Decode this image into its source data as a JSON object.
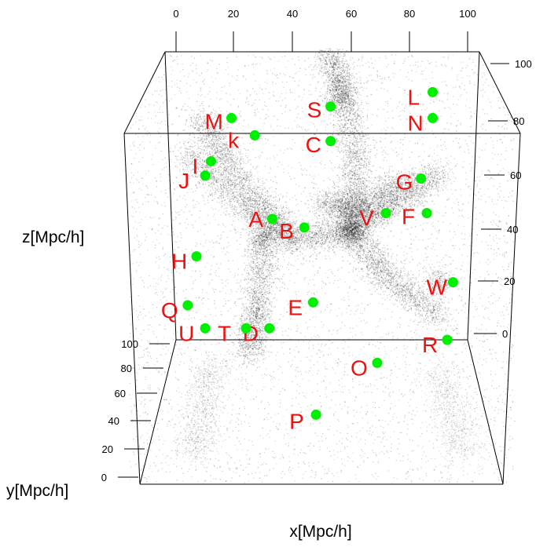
{
  "chart_data": {
    "type": "scatter",
    "projection": "3d-perspective",
    "grid": false,
    "axes": {
      "x": {
        "label": "x[Mpc/h]",
        "ticks": [
          0,
          20,
          40,
          60,
          80,
          100
        ],
        "range": [
          0,
          100
        ]
      },
      "y": {
        "label": "y[Mpc/h]",
        "ticks": [
          0,
          20,
          40,
          60,
          80,
          100
        ],
        "range": [
          0,
          100
        ]
      },
      "z": {
        "label": "z[Mpc/h]",
        "ticks": [
          0,
          20,
          40,
          60,
          80,
          100
        ],
        "range": [
          0,
          100
        ]
      }
    },
    "colors": {
      "markers": "#00ee00",
      "labels": "#ee1111",
      "particles": "#000000",
      "box": "#000000"
    },
    "background_particles": {
      "description_none": "",
      "filaments_xz": [
        [
          [
            3,
            65
          ],
          [
            25,
            45
          ],
          [
            40,
            35
          ],
          [
            60,
            38
          ]
        ],
        [
          [
            60,
            38
          ],
          [
            62,
            60
          ],
          [
            58,
            85
          ],
          [
            52,
            100
          ]
        ],
        [
          [
            60,
            38
          ],
          [
            75,
            48
          ],
          [
            90,
            58
          ]
        ],
        [
          [
            30,
            35
          ],
          [
            28,
            10
          ],
          [
            25,
            -5
          ]
        ],
        [
          [
            60,
            38
          ],
          [
            72,
            22
          ],
          [
            90,
            8
          ]
        ],
        [
          [
            40,
            35
          ],
          [
            20,
            58
          ],
          [
            8,
            78
          ]
        ],
        [
          [
            50,
            48
          ],
          [
            62,
            45
          ],
          [
            78,
            55
          ]
        ]
      ]
    },
    "points": [
      {
        "label": "A",
        "x": 33,
        "z": 42,
        "depth": 0.5
      },
      {
        "label": "B",
        "x": 44,
        "z": 39,
        "depth": 0.5
      },
      {
        "label": "C",
        "x": 53,
        "z": 69,
        "depth": 0.5
      },
      {
        "label": "D",
        "x": 32,
        "z": 4,
        "depth": 0.5
      },
      {
        "label": "E",
        "x": 47,
        "z": 13,
        "depth": 0.5
      },
      {
        "label": "F",
        "x": 86,
        "z": 44,
        "depth": 0.5
      },
      {
        "label": "G",
        "x": 84,
        "z": 56,
        "depth": 0.5
      },
      {
        "label": "H",
        "x": 7,
        "z": 29,
        "depth": 0.5
      },
      {
        "label": "I",
        "x": 12,
        "z": 62,
        "depth": 0.5
      },
      {
        "label": "J",
        "x": 10,
        "z": 57,
        "depth": 0.5
      },
      {
        "label": "k",
        "x": 27,
        "z": 71,
        "depth": 0.5
      },
      {
        "label": "L",
        "x": 88,
        "z": 86,
        "depth": 0.5
      },
      {
        "label": "M",
        "x": 19,
        "z": 77,
        "depth": 0.5
      },
      {
        "label": "N",
        "x": 88,
        "z": 77,
        "depth": 0.5
      },
      {
        "label": "O",
        "x": 69,
        "z": -8,
        "depth": 0.5
      },
      {
        "label": "P",
        "x": 48,
        "z": -26,
        "depth": 0.5
      },
      {
        "label": "Q",
        "x": 4,
        "z": 12,
        "depth": 0.5
      },
      {
        "label": "R",
        "x": 93,
        "z": 0,
        "depth": 0.5
      },
      {
        "label": "S",
        "x": 53,
        "z": 81,
        "depth": 0.5
      },
      {
        "label": "T",
        "x": 24,
        "z": 4,
        "depth": 0.5
      },
      {
        "label": "U",
        "x": 10,
        "z": 4,
        "depth": 0.5
      },
      {
        "label": "V",
        "x": 72,
        "z": 44,
        "depth": 0.5
      },
      {
        "label": "W",
        "x": 95,
        "z": 20,
        "depth": 0.5
      }
    ]
  }
}
